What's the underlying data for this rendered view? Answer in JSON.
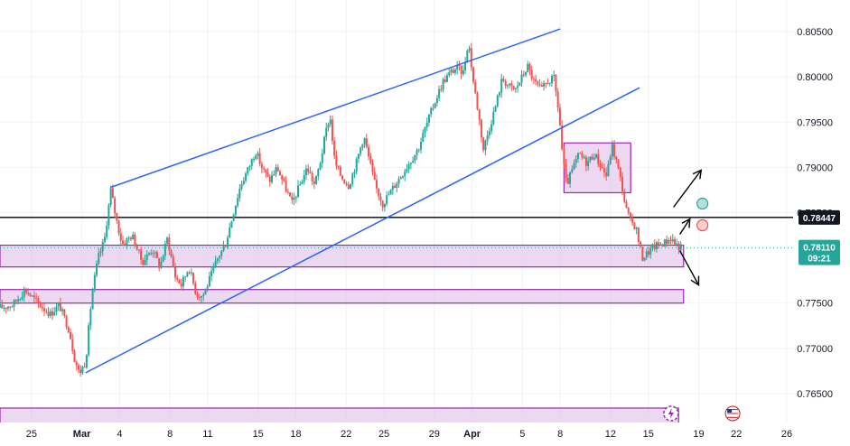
{
  "chart_data": {
    "type": "candlestick",
    "instrument_hint": "",
    "colors": {
      "up": "#26a69a",
      "down": "#ef5350",
      "trendline": "#2962ff",
      "zone_fill": "#e1bee7",
      "zone_border": "#9c27b0",
      "hline": "#000000",
      "last_price_bg": "#26a69a",
      "green_dot": "#26a69a",
      "red_dot": "#ef5350",
      "grid": "#f0f3fa",
      "axis_text": "#131722"
    },
    "x_axis": {
      "ticks": [
        {
          "label": "25",
          "day": -4,
          "bold": false
        },
        {
          "label": "Mar",
          "day": 0,
          "bold": true
        },
        {
          "label": "4",
          "day": 3,
          "bold": false
        },
        {
          "label": "8",
          "day": 7,
          "bold": false
        },
        {
          "label": "11",
          "day": 10,
          "bold": false
        },
        {
          "label": "15",
          "day": 14,
          "bold": false
        },
        {
          "label": "18",
          "day": 17,
          "bold": false
        },
        {
          "label": "22",
          "day": 21,
          "bold": false
        },
        {
          "label": "25",
          "day": 24,
          "bold": false
        },
        {
          "label": "29",
          "day": 28,
          "bold": false
        },
        {
          "label": "Apr",
          "day": 31,
          "bold": true
        },
        {
          "label": "5",
          "day": 35,
          "bold": false
        },
        {
          "label": "8",
          "day": 38,
          "bold": false
        },
        {
          "label": "12",
          "day": 42,
          "bold": false
        },
        {
          "label": "15",
          "day": 45,
          "bold": false
        },
        {
          "label": "19",
          "day": 49,
          "bold": false
        },
        {
          "label": "22",
          "day": 52,
          "bold": false
        },
        {
          "label": "26",
          "day": 56,
          "bold": false
        }
      ],
      "range": [
        -6.5,
        56.5
      ]
    },
    "y_axis": {
      "ticks": [
        "0.80500",
        "0.80000",
        "0.79500",
        "0.79000",
        "0.78500",
        "0.77500",
        "0.77000",
        "0.76500"
      ],
      "tick_values": [
        0.805,
        0.8,
        0.795,
        0.79,
        0.785,
        0.775,
        0.77,
        0.765
      ],
      "range": [
        0.7618,
        0.8085
      ]
    },
    "key_levels": [
      {
        "label": "0.78447",
        "value": 0.78447
      }
    ],
    "last_price": {
      "value": "0.78110",
      "countdown": "09:21"
    },
    "price_path": [
      [
        -6.5,
        0.7745
      ],
      [
        -5.5,
        0.7748
      ],
      [
        -4.5,
        0.7765
      ],
      [
        -3.5,
        0.775
      ],
      [
        -2.5,
        0.7738
      ],
      [
        -1.8,
        0.7748
      ],
      [
        -1.0,
        0.772
      ],
      [
        -0.6,
        0.769
      ],
      [
        -0.2,
        0.7672
      ],
      [
        0.3,
        0.7685
      ],
      [
        0.8,
        0.776
      ],
      [
        1.3,
        0.78
      ],
      [
        1.8,
        0.782
      ],
      [
        2.3,
        0.7875
      ],
      [
        2.7,
        0.7845
      ],
      [
        3.2,
        0.7815
      ],
      [
        4.0,
        0.7825
      ],
      [
        4.8,
        0.7795
      ],
      [
        5.6,
        0.781
      ],
      [
        6.2,
        0.779
      ],
      [
        6.8,
        0.7822
      ],
      [
        7.4,
        0.778
      ],
      [
        7.9,
        0.777
      ],
      [
        8.5,
        0.779
      ],
      [
        9.1,
        0.776
      ],
      [
        9.6,
        0.7758
      ],
      [
        10.2,
        0.7778
      ],
      [
        10.8,
        0.78
      ],
      [
        11.4,
        0.7815
      ],
      [
        12.0,
        0.7848
      ],
      [
        12.6,
        0.788
      ],
      [
        13.2,
        0.7898
      ],
      [
        13.8,
        0.7918
      ],
      [
        14.3,
        0.79
      ],
      [
        14.9,
        0.7885
      ],
      [
        15.5,
        0.79
      ],
      [
        16.1,
        0.788
      ],
      [
        16.7,
        0.786
      ],
      [
        17.3,
        0.788
      ],
      [
        17.9,
        0.79
      ],
      [
        18.5,
        0.788
      ],
      [
        19.0,
        0.791
      ],
      [
        19.4,
        0.794
      ],
      [
        19.7,
        0.7958
      ],
      [
        20.1,
        0.7905
      ],
      [
        20.6,
        0.789
      ],
      [
        21.2,
        0.788
      ],
      [
        21.8,
        0.7905
      ],
      [
        22.4,
        0.7935
      ],
      [
        22.8,
        0.791
      ],
      [
        23.3,
        0.788
      ],
      [
        23.9,
        0.786
      ],
      [
        24.6,
        0.7875
      ],
      [
        25.3,
        0.789
      ],
      [
        26.0,
        0.7905
      ],
      [
        26.7,
        0.792
      ],
      [
        27.4,
        0.7948
      ],
      [
        28.1,
        0.7975
      ],
      [
        28.7,
        0.7995
      ],
      [
        29.3,
        0.8005
      ],
      [
        29.8,
        0.801
      ],
      [
        30.3,
        0.8005
      ],
      [
        30.7,
        0.804
      ],
      [
        31.1,
        0.7995
      ],
      [
        31.5,
        0.796
      ],
      [
        31.9,
        0.792
      ],
      [
        32.4,
        0.7945
      ],
      [
        32.9,
        0.797
      ],
      [
        33.4,
        0.7998
      ],
      [
        33.9,
        0.799
      ],
      [
        34.4,
        0.7985
      ],
      [
        34.9,
        0.7998
      ],
      [
        35.4,
        0.8012
      ],
      [
        35.9,
        0.7995
      ],
      [
        36.5,
        0.7985
      ],
      [
        37.0,
        0.7995
      ],
      [
        37.5,
        0.7998
      ],
      [
        37.9,
        0.796
      ],
      [
        38.2,
        0.791
      ],
      [
        38.5,
        0.788
      ],
      [
        38.9,
        0.7895
      ],
      [
        39.5,
        0.7915
      ],
      [
        40.1,
        0.7905
      ],
      [
        40.7,
        0.7915
      ],
      [
        41.3,
        0.79
      ],
      [
        41.7,
        0.789
      ],
      [
        42.1,
        0.7925
      ],
      [
        42.5,
        0.7905
      ],
      [
        42.9,
        0.788
      ],
      [
        43.2,
        0.7855
      ],
      [
        43.6,
        0.784
      ],
      [
        44.0,
        0.7835
      ],
      [
        44.5,
        0.78
      ],
      [
        44.9,
        0.7805
      ],
      [
        45.4,
        0.7812
      ],
      [
        45.9,
        0.7815
      ],
      [
        46.4,
        0.7818
      ],
      [
        46.8,
        0.7822
      ],
      [
        47.2,
        0.7815
      ],
      [
        47.6,
        0.7811
      ]
    ],
    "trendlines": [
      {
        "from": [
          2.3,
          0.7878
        ],
        "to": [
          38.0,
          0.8053
        ]
      },
      {
        "from": [
          0.3,
          0.7673
        ],
        "to": [
          44.3,
          0.7988
        ]
      }
    ],
    "zones": [
      {
        "name": "upper-support",
        "x0": -6.5,
        "x1": 47.8,
        "y0": 0.779,
        "y1": 0.7814
      },
      {
        "name": "lower-support",
        "x0": -6.5,
        "x1": 47.8,
        "y0": 0.775,
        "y1": 0.7765
      },
      {
        "name": "bottom-zone",
        "x0": -6.5,
        "x1": 47.4,
        "y0": 0.7612,
        "y1": 0.7634
      },
      {
        "name": "consolidation-box",
        "x0": 38.3,
        "x1": 43.6,
        "y0": 0.7872,
        "y1": 0.7927
      }
    ],
    "arrows": [
      {
        "from": [
          47.0,
          0.7856
        ],
        "to": [
          49.2,
          0.7897
        ],
        "name": "arrow-up-far"
      },
      {
        "from": [
          47.5,
          0.7826
        ],
        "to": [
          48.3,
          0.7843
        ],
        "name": "arrow-up-near"
      },
      {
        "from": [
          47.5,
          0.7808
        ],
        "to": [
          49.0,
          0.777
        ],
        "name": "arrow-down"
      }
    ],
    "markers": [
      {
        "name": "green-circle",
        "at": [
          49.3,
          0.786
        ],
        "color": "green"
      },
      {
        "name": "red-circle",
        "at": [
          49.3,
          0.7836
        ],
        "color": "red"
      }
    ],
    "bottom_icons": [
      {
        "name": "lightning-icon",
        "at_day": 46.8
      },
      {
        "name": "us-flag-icon",
        "at_day": 51.7
      }
    ]
  }
}
